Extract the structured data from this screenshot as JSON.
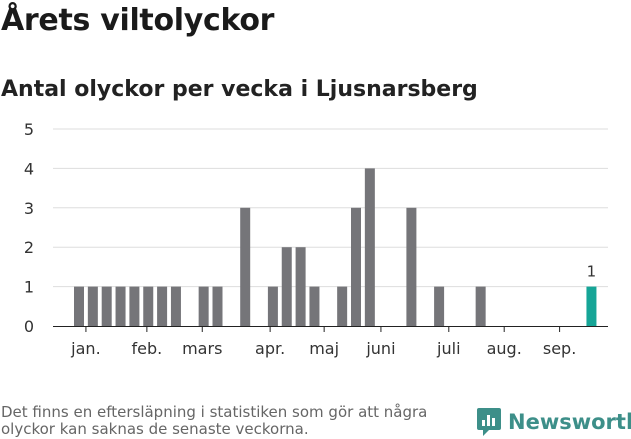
{
  "header": {
    "title": "Årets viltolyckor",
    "subtitle": "Antal olyckor per vecka i Ljusnarsberg"
  },
  "footer": {
    "note": "Det finns en eftersläpning i statistiken som gör att några olyckor kan saknas de senaste veckorna.",
    "brand": "Newsworthy"
  },
  "colors": {
    "bar": "#757579",
    "highlight": "#16a597",
    "grid": "#dddddd",
    "axis": "#222222",
    "brand": "#3d8f89"
  },
  "chart_data": {
    "type": "bar",
    "x": [
      1,
      2,
      3,
      4,
      5,
      6,
      7,
      8,
      9,
      10,
      11,
      12,
      13,
      14,
      15,
      16,
      17,
      18,
      19,
      20,
      21,
      22,
      23,
      24,
      25,
      26,
      27,
      28,
      29,
      30,
      31,
      32,
      33,
      34,
      35,
      36,
      37,
      38
    ],
    "values": [
      1,
      1,
      1,
      1,
      1,
      1,
      1,
      1,
      0,
      1,
      1,
      0,
      3,
      0,
      1,
      2,
      2,
      1,
      0,
      1,
      3,
      4,
      0,
      0,
      3,
      0,
      1,
      0,
      0,
      1,
      0,
      0,
      0,
      0,
      0,
      0,
      0,
      1
    ],
    "highlight_index": 37,
    "data_labels": [
      {
        "index": 37,
        "label": "1"
      }
    ],
    "month_labels": [
      {
        "label": "jan.",
        "x": 1.5
      },
      {
        "label": "feb.",
        "x": 5.9
      },
      {
        "label": "mars",
        "x": 9.9
      },
      {
        "label": "apr.",
        "x": 14.8
      },
      {
        "label": "maj",
        "x": 18.7
      },
      {
        "label": "juni",
        "x": 22.8
      },
      {
        "label": "juli",
        "x": 27.7
      },
      {
        "label": "aug.",
        "x": 31.7
      },
      {
        "label": "sep.",
        "x": 35.7
      }
    ],
    "ylim": [
      0,
      5
    ],
    "yticks": [
      0,
      1,
      2,
      3,
      4,
      5
    ],
    "grid": true,
    "title": "Årets viltolyckor",
    "subtitle": "Antal olyckor per vecka i Ljusnarsberg",
    "xlabel": "",
    "ylabel": ""
  }
}
